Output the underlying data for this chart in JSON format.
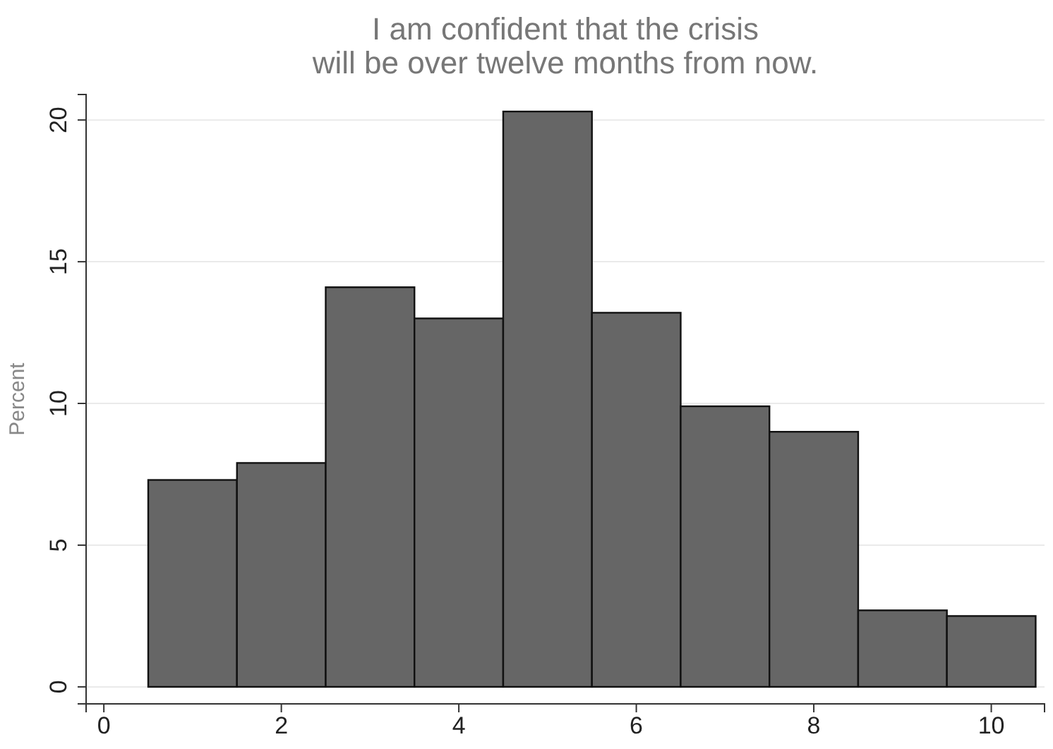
{
  "chart_data": {
    "type": "histogram",
    "title": "I am confident that the crisis\nwill be over twelve months from now.",
    "ylabel": "Percent",
    "bins": [
      0.5,
      1.5,
      2.5,
      3.5,
      4.5,
      5.5,
      6.5,
      7.5,
      8.5,
      9.5,
      10.5
    ],
    "values": [
      7.3,
      7.9,
      14.1,
      13.0,
      20.3,
      13.2,
      9.9,
      9.0,
      2.7,
      2.5
    ],
    "color": "#666666",
    "xlim": [
      -0.2,
      10.6
    ],
    "xticks": [
      0,
      2,
      4,
      6,
      8,
      10
    ],
    "ylim": [
      -0.6,
      20.9
    ],
    "yticks": [
      0,
      5,
      10,
      15,
      20
    ],
    "grid": "y"
  }
}
